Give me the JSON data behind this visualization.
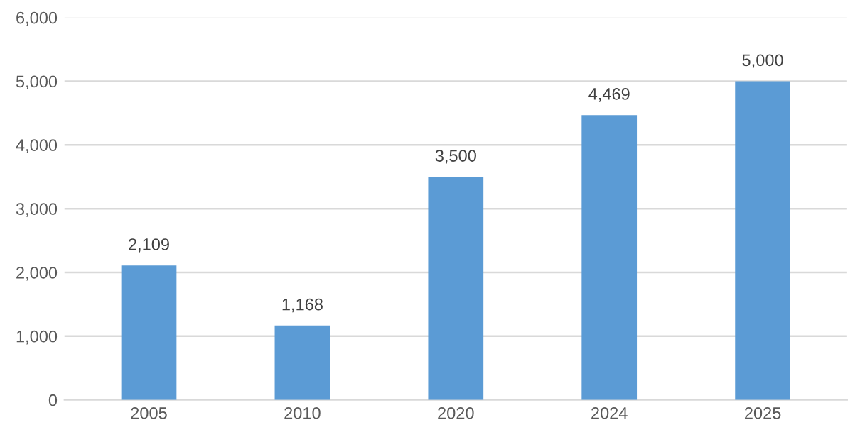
{
  "chart_data": {
    "type": "bar",
    "categories": [
      "2005",
      "2010",
      "2020",
      "2024",
      "2025"
    ],
    "values": [
      2109,
      1168,
      3500,
      4469,
      5000
    ],
    "value_labels": [
      "2,109",
      "1,168",
      "3,500",
      "4,469",
      "5,000"
    ],
    "color": "#5b9bd5",
    "ylim": [
      0,
      6000
    ],
    "yticks": [
      {
        "value": 0,
        "label": "0"
      },
      {
        "value": 1000,
        "label": "1,000"
      },
      {
        "value": 2000,
        "label": "2,000"
      },
      {
        "value": 3000,
        "label": "3,000"
      },
      {
        "value": 4000,
        "label": "4,000"
      },
      {
        "value": 5000,
        "label": "5,000"
      },
      {
        "value": 6000,
        "label": "6,000"
      }
    ],
    "grid": "y"
  }
}
